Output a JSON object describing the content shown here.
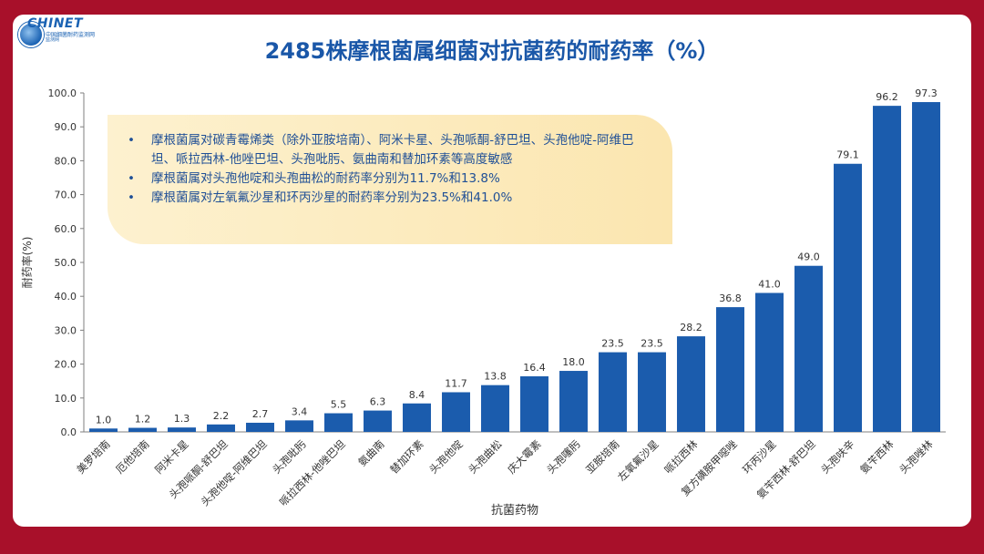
{
  "logo": {
    "brand": "CHINET",
    "sub": "中国细菌耐药监测网",
    "sub2": "监测网",
    "icon": "globe-icon"
  },
  "title": "2485株摩根菌属细菌对抗菌药的耐药率（%）",
  "callout": {
    "bullets": [
      "摩根菌属对碳青霉烯类（除外亚胺培南）、阿米卡星、头孢哌酮-舒巴坦、头孢他啶-阿维巴坦、哌拉西林-他唑巴坦、头孢吡肟、氨曲南和替加环素等高度敏感",
      "摩根菌属对头孢他啶和头孢曲松的耐药率分别为11.7%和13.8%",
      "摩根菌属对左氧氟沙星和环丙沙星的耐药率分别为23.5%和41.0%"
    ]
  },
  "colors": {
    "background": "#a8102a",
    "bar": "#1b5cad",
    "title": "#1a57a8",
    "callout": "#fbe6b0"
  },
  "chart_data": {
    "type": "bar",
    "categories": [
      "美罗培南",
      "厄他培南",
      "阿米卡星",
      "头孢哌酮-舒巴坦",
      "头孢他啶-阿维巴坦",
      "头孢吡肟",
      "哌拉西林-他唑巴坦",
      "氨曲南",
      "替加环素",
      "头孢他啶",
      "头孢曲松",
      "庆大霉素",
      "头孢噻肟",
      "亚胺培南",
      "左氧氟沙星",
      "哌拉西林",
      "复方磺胺甲噁唑",
      "环丙沙星",
      "氨苄西林-舒巴坦",
      "头孢呋辛",
      "氨苄西林",
      "头孢唑林"
    ],
    "values": [
      1.0,
      1.2,
      1.3,
      2.2,
      2.7,
      3.4,
      5.5,
      6.3,
      8.4,
      11.7,
      13.8,
      16.4,
      18.0,
      23.5,
      23.5,
      28.2,
      36.8,
      41.0,
      49.0,
      79.1,
      96.2,
      97.3
    ],
    "xlabel": "抗菌药物",
    "ylabel": "耐药率(%)",
    "ylim": [
      0,
      100
    ],
    "yticks": [
      "0.0",
      "10.0",
      "20.0",
      "30.0",
      "40.0",
      "50.0",
      "60.0",
      "70.0",
      "80.0",
      "90.0",
      "100.0"
    ],
    "grid": false,
    "legend": "none"
  }
}
